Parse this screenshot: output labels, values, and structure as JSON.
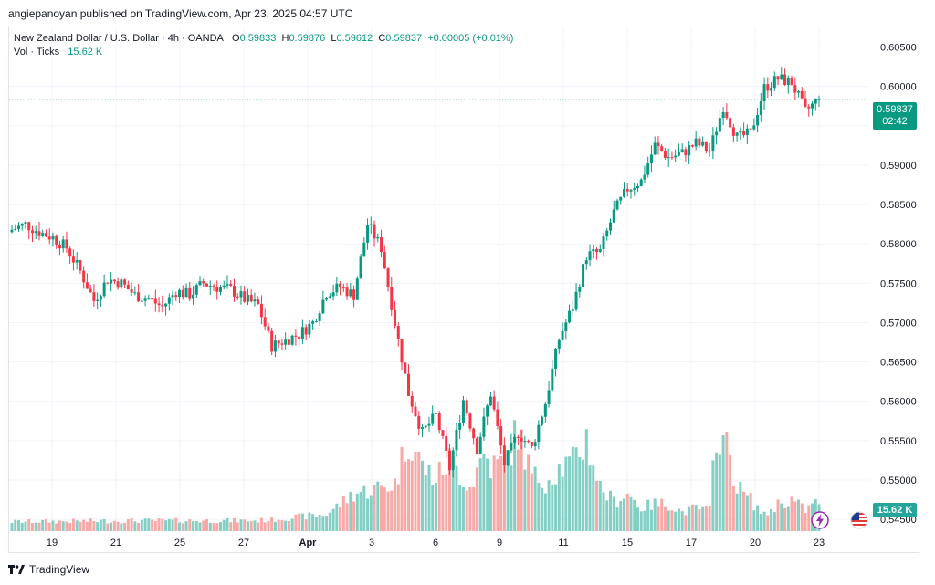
{
  "header": {
    "publisher": "angiepanoyan published on TradingView.com, Apr 23, 2025 04:57 UTC"
  },
  "legend": {
    "symbol": "New Zealand Dollar / U.S. Dollar · 4h · OANDA",
    "o_label": "O",
    "o": "0.59833",
    "h_label": "H",
    "h": "0.59876",
    "l_label": "L",
    "l": "0.59612",
    "c_label": "C",
    "c": "0.59837",
    "change": "+0.00005 (+0.01%)",
    "vol_label": "Vol · Ticks",
    "vol_value": "15.62 K"
  },
  "price_tag": {
    "price": "0.59837",
    "countdown": "02:42"
  },
  "volume_tag": "15.62 K",
  "footer": {
    "brand": "TradingView"
  },
  "icons": [
    "lightning-event-icon",
    "us-flag-event-icon"
  ],
  "colors": {
    "up": "#089981",
    "down": "#f23645",
    "vol_up": "#83cfc4",
    "vol_down": "#f7a9a7",
    "grid": "#f0f3fa"
  },
  "chart_data": {
    "type": "candlestick",
    "title": "New Zealand Dollar / U.S. Dollar · 4h · OANDA",
    "x_ticks": [
      "19",
      "21",
      "25",
      "27",
      "Apr",
      "3",
      "6",
      "9",
      "11",
      "15",
      "17",
      "20",
      "23"
    ],
    "y_ticks": [
      "0.60500",
      "0.60000",
      "0.59500",
      "0.59000",
      "0.58500",
      "0.58000",
      "0.57500",
      "0.57000",
      "0.56500",
      "0.56000",
      "0.55500",
      "0.55000",
      "0.54500"
    ],
    "ylim": [
      0.5435,
      0.6075
    ],
    "last_price": 0.59837,
    "grid": true,
    "close_path": [
      [
        0,
        0.5818
      ],
      [
        4,
        0.5825
      ],
      [
        8,
        0.5815
      ],
      [
        12,
        0.5808
      ],
      [
        16,
        0.5795
      ],
      [
        20,
        0.5765
      ],
      [
        24,
        0.5728
      ],
      [
        28,
        0.5755
      ],
      [
        32,
        0.575
      ],
      [
        36,
        0.5735
      ],
      [
        40,
        0.573
      ],
      [
        44,
        0.572
      ],
      [
        48,
        0.574
      ],
      [
        52,
        0.5735
      ],
      [
        56,
        0.575
      ],
      [
        60,
        0.5745
      ],
      [
        64,
        0.5742
      ],
      [
        68,
        0.573
      ],
      [
        72,
        0.5722
      ],
      [
        76,
        0.567
      ],
      [
        80,
        0.5678
      ],
      [
        84,
        0.5685
      ],
      [
        88,
        0.57
      ],
      [
        92,
        0.5738
      ],
      [
        96,
        0.5745
      ],
      [
        100,
        0.5735
      ],
      [
        104,
        0.5825
      ],
      [
        108,
        0.5795
      ],
      [
        112,
        0.57
      ],
      [
        116,
        0.561
      ],
      [
        120,
        0.556
      ],
      [
        124,
        0.5582
      ],
      [
        128,
        0.5515
      ],
      [
        132,
        0.5602
      ],
      [
        136,
        0.554
      ],
      [
        140,
        0.561
      ],
      [
        144,
        0.552
      ],
      [
        148,
        0.556
      ],
      [
        152,
        0.554
      ],
      [
        156,
        0.5598
      ],
      [
        160,
        0.568
      ],
      [
        164,
        0.572
      ],
      [
        168,
        0.5785
      ],
      [
        172,
        0.579
      ],
      [
        176,
        0.584
      ],
      [
        180,
        0.587
      ],
      [
        184,
        0.588
      ],
      [
        188,
        0.5925
      ],
      [
        192,
        0.591
      ],
      [
        196,
        0.5915
      ],
      [
        200,
        0.5928
      ],
      [
        204,
        0.5918
      ],
      [
        208,
        0.5975
      ],
      [
        212,
        0.5935
      ],
      [
        216,
        0.594
      ],
      [
        220,
        0.5998
      ],
      [
        224,
        0.601
      ],
      [
        228,
        0.6005
      ],
      [
        232,
        0.5968
      ],
      [
        236,
        0.5984
      ]
    ],
    "volume_path": [
      [
        0,
        0.9
      ],
      [
        36,
        1.0
      ],
      [
        72,
        1.0
      ],
      [
        92,
        1.6
      ],
      [
        100,
        3.6
      ],
      [
        112,
        4.5
      ],
      [
        116,
        9.0
      ],
      [
        120,
        6.2
      ],
      [
        124,
        5.0
      ],
      [
        128,
        6.8
      ],
      [
        134,
        4.2
      ],
      [
        138,
        7.4
      ],
      [
        140,
        6.2
      ],
      [
        144,
        6.5
      ],
      [
        148,
        9.5
      ],
      [
        152,
        5.2
      ],
      [
        156,
        4.8
      ],
      [
        160,
        6.0
      ],
      [
        164,
        6.5
      ],
      [
        168,
        8.8
      ],
      [
        172,
        4.2
      ],
      [
        176,
        2.8
      ],
      [
        180,
        3.6
      ],
      [
        184,
        2.2
      ],
      [
        188,
        2.6
      ],
      [
        192,
        2.6
      ],
      [
        196,
        1.8
      ],
      [
        200,
        2.2
      ],
      [
        204,
        2.0
      ],
      [
        206,
        9.9
      ],
      [
        210,
        7.2
      ],
      [
        212,
        4.2
      ],
      [
        216,
        3.0
      ],
      [
        220,
        1.5
      ],
      [
        224,
        2.6
      ],
      [
        228,
        3.0
      ],
      [
        232,
        2.0
      ],
      [
        236,
        2.9
      ]
    ],
    "volume_max": 10
  }
}
